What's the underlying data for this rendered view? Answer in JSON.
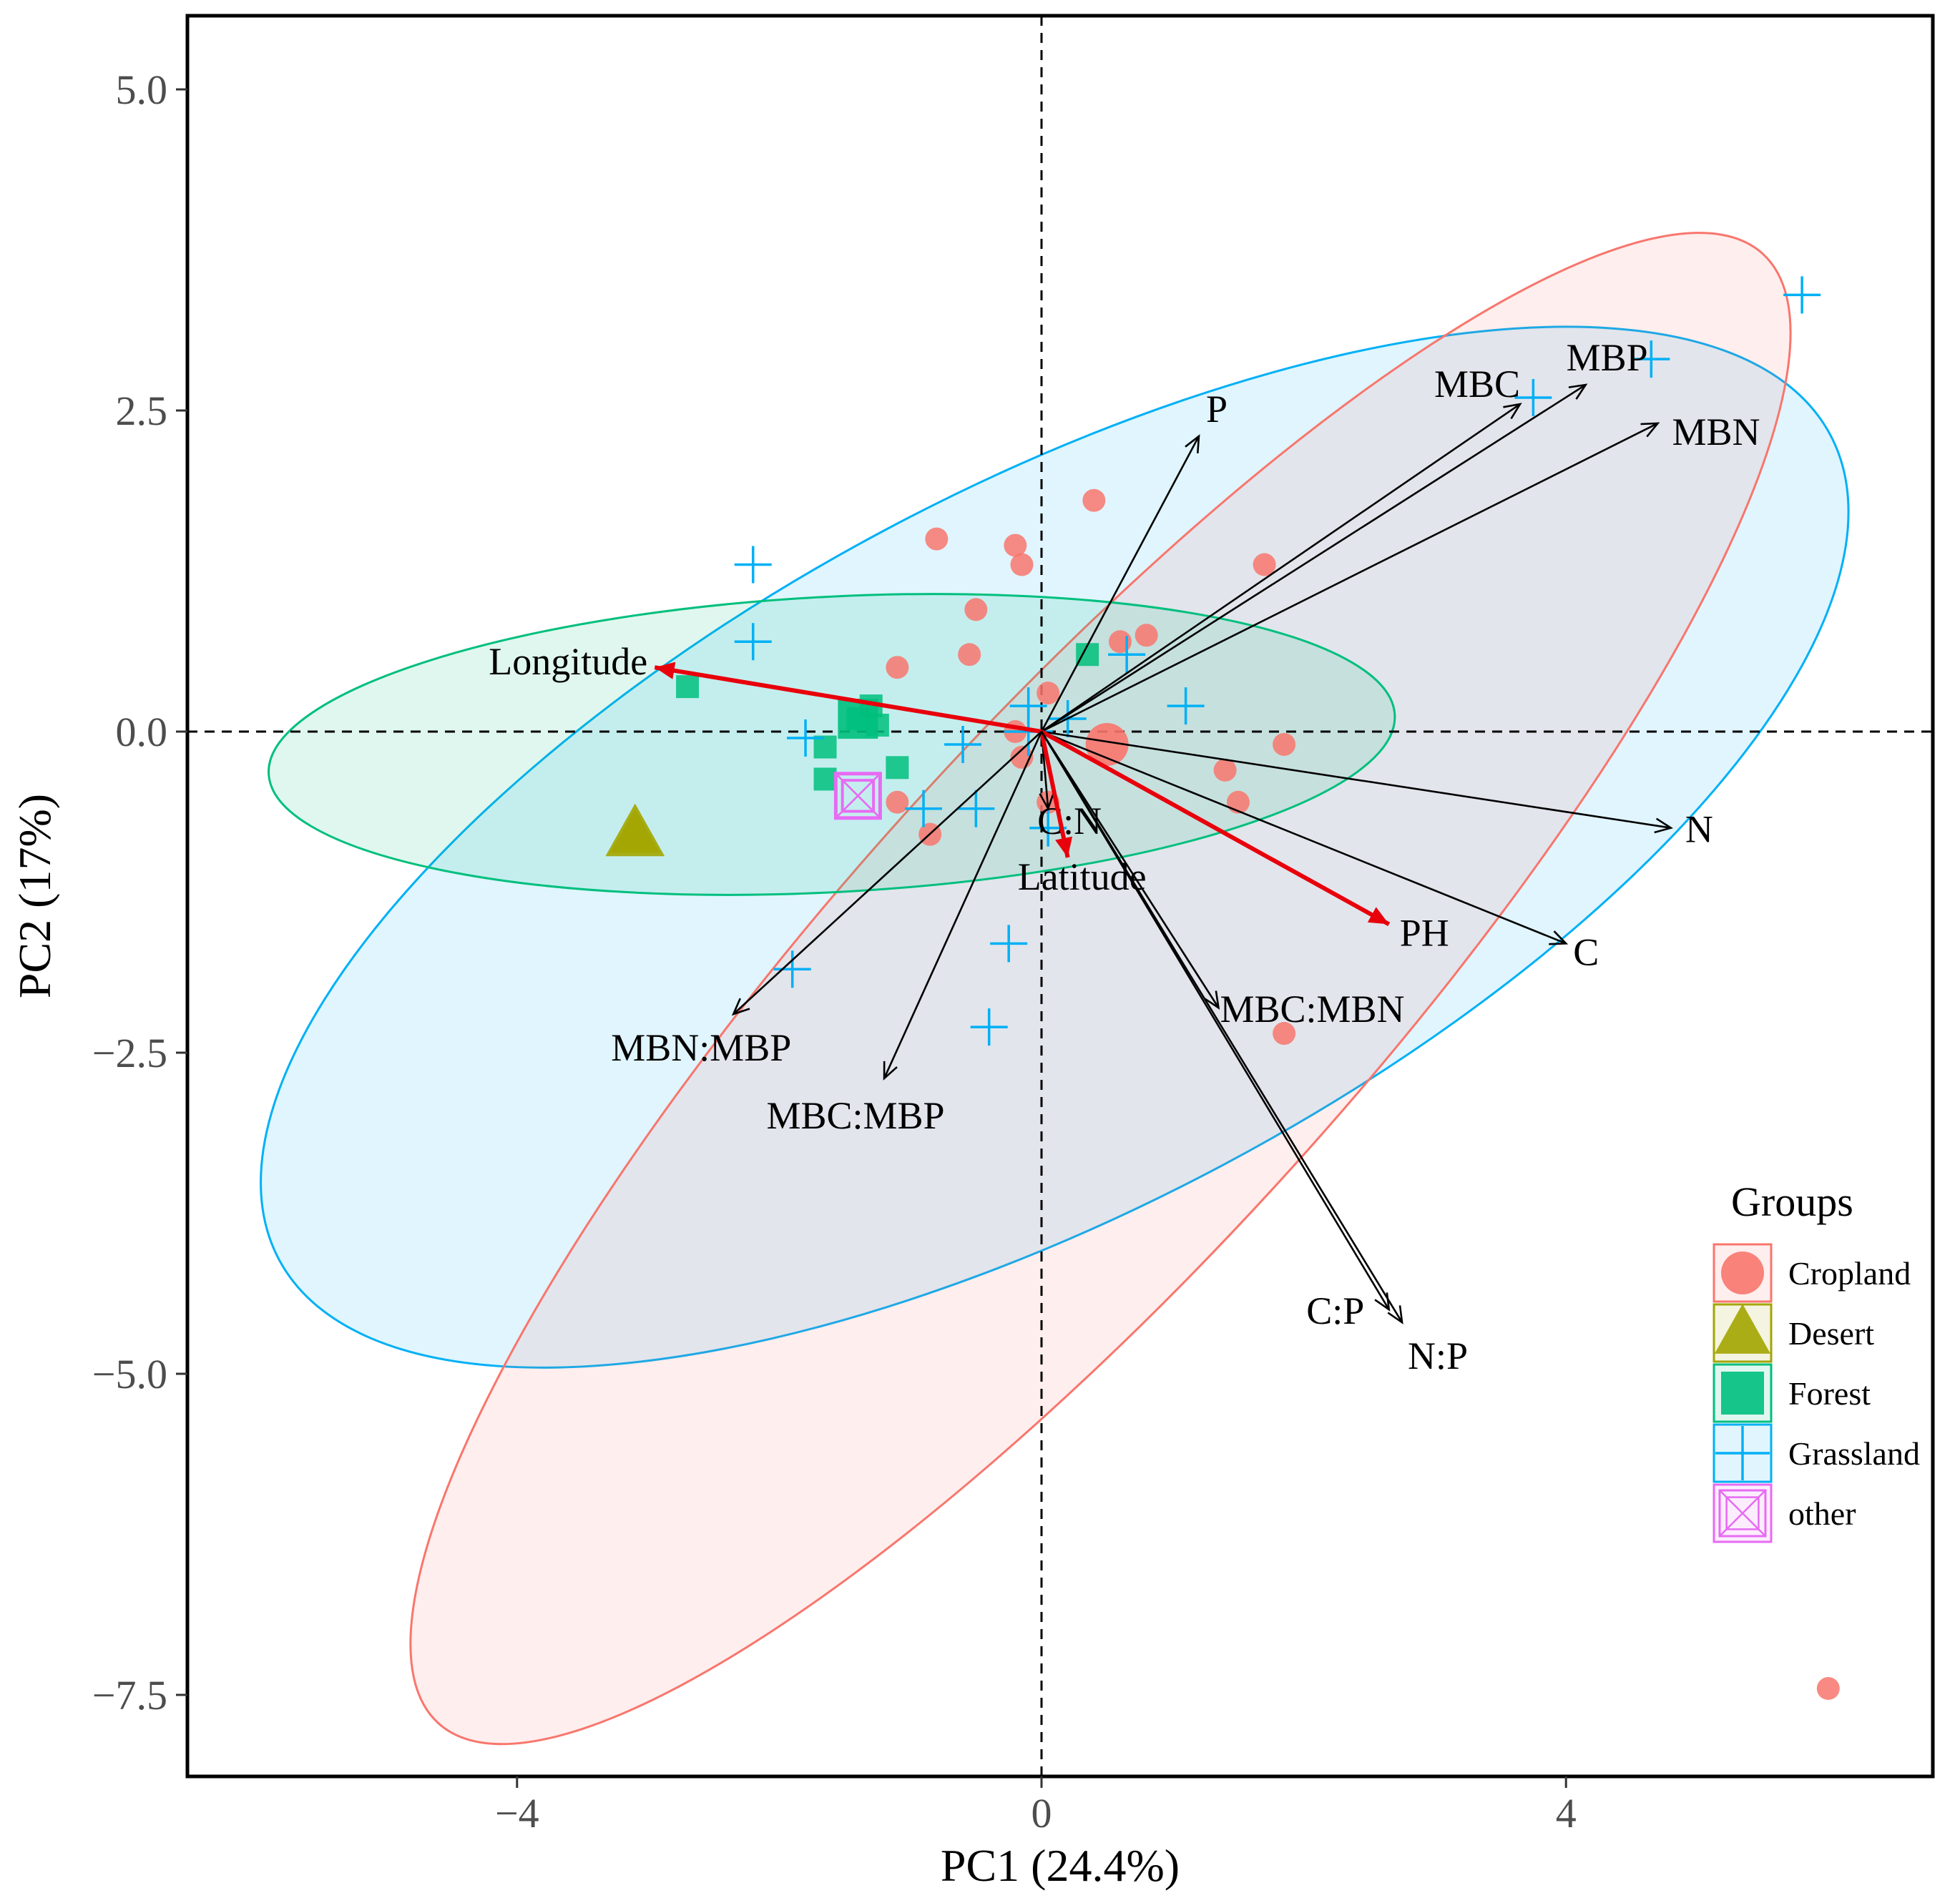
{
  "chart_data": {
    "type": "scatter",
    "subtype": "pca-biplot",
    "xlabel": "PC1 (24.4%)",
    "ylabel": "PC2 (17%)",
    "xlim": [
      -6.6,
      6.9
    ],
    "ylim": [
      -8.1,
      5.6
    ],
    "xticks": [
      {
        "value": -4,
        "label": "−4"
      },
      {
        "value": 0,
        "label": "0"
      },
      {
        "value": 4,
        "label": "4"
      }
    ],
    "yticks": [
      {
        "value": 5.0,
        "label": "5.0"
      },
      {
        "value": 2.5,
        "label": "2.5"
      },
      {
        "value": 0.0,
        "label": "0.0"
      },
      {
        "value": -2.5,
        "label": "−2.5"
      },
      {
        "value": -5.0,
        "label": "−5.0"
      },
      {
        "value": -7.5,
        "label": "−7.5"
      }
    ],
    "reference_lines": {
      "x": 0,
      "y": 0,
      "style": "dashed"
    },
    "legend": {
      "title": "Groups",
      "position": "right"
    },
    "groups": [
      {
        "name": "Cropland",
        "shape": "circle",
        "color": "#f8766d",
        "centroid": [
          0.5,
          -0.1
        ],
        "ellipse": {
          "center": [
            0.45,
            -2.0
          ],
          "semi_axes": [
            2.0,
            7.7
          ],
          "angle_deg": -42
        },
        "points": [
          [
            -0.8,
            1.5
          ],
          [
            -0.2,
            1.45
          ],
          [
            -0.15,
            1.3
          ],
          [
            0.4,
            1.8
          ],
          [
            1.7,
            1.3
          ],
          [
            -0.5,
            0.95
          ],
          [
            -1.1,
            0.5
          ],
          [
            -0.55,
            0.6
          ],
          [
            0.6,
            0.7
          ],
          [
            0.8,
            0.75
          ],
          [
            0.05,
            0.3
          ],
          [
            -0.2,
            0.0
          ],
          [
            -0.15,
            -0.2
          ],
          [
            1.4,
            -0.3
          ],
          [
            1.85,
            -0.1
          ],
          [
            1.5,
            -0.55
          ],
          [
            -1.1,
            -0.55
          ],
          [
            -0.85,
            -0.8
          ],
          [
            0.05,
            -0.55
          ],
          [
            1.85,
            -2.35
          ],
          [
            6.0,
            -7.45
          ]
        ]
      },
      {
        "name": "Desert",
        "shape": "triangle",
        "color": "#a3a500",
        "centroid": [
          -3.1,
          -0.8
        ],
        "points": [
          [
            -3.1,
            -0.8
          ]
        ]
      },
      {
        "name": "Forest",
        "shape": "square",
        "color": "#00bf7d",
        "centroid": [
          -1.4,
          0.1
        ],
        "ellipse": {
          "center": [
            -1.6,
            -0.1
          ],
          "semi_axes": [
            4.3,
            1.15
          ],
          "angle_deg": 3
        },
        "points": [
          [
            -2.7,
            0.35
          ],
          [
            -1.3,
            0.2
          ],
          [
            -1.4,
            0.1
          ],
          [
            -1.25,
            0.05
          ],
          [
            -1.65,
            -0.12
          ],
          [
            -1.1,
            -0.28
          ],
          [
            -1.65,
            -0.37
          ],
          [
            0.35,
            0.6
          ]
        ]
      },
      {
        "name": "Grassland",
        "shape": "plus",
        "color": "#00b0f6",
        "centroid": [
          -0.1,
          0.0
        ],
        "ellipse": {
          "center": [
            0.1,
            -0.9
          ],
          "semi_axes": [
            6.7,
            2.8
          ],
          "angle_deg": 28
        },
        "points": [
          [
            5.8,
            3.4
          ],
          [
            4.65,
            2.9
          ],
          [
            3.75,
            2.6
          ],
          [
            -2.2,
            1.3
          ],
          [
            -2.2,
            0.7
          ],
          [
            0.65,
            0.6
          ],
          [
            -0.1,
            0.2
          ],
          [
            1.1,
            0.2
          ],
          [
            0.2,
            0.1
          ],
          [
            -1.8,
            -0.05
          ],
          [
            -0.6,
            -0.1
          ],
          [
            -0.9,
            -0.6
          ],
          [
            -0.5,
            -0.6
          ],
          [
            0.05,
            -0.75
          ],
          [
            -0.25,
            -1.65
          ],
          [
            -0.4,
            -2.3
          ],
          [
            -1.9,
            -1.85
          ]
        ]
      },
      {
        "name": "other",
        "shape": "square-cross",
        "color": "#e76bf3",
        "centroid": [
          -1.4,
          -0.5
        ],
        "points": [
          [
            -1.4,
            -0.5
          ]
        ]
      }
    ],
    "loadings": [
      {
        "name": "P",
        "x": 1.2,
        "y": 2.3,
        "color": "#000000"
      },
      {
        "name": "MBC",
        "x": 3.65,
        "y": 2.55,
        "color": "#000000"
      },
      {
        "name": "MBP",
        "x": 4.15,
        "y": 2.7,
        "color": "#000000"
      },
      {
        "name": "MBN",
        "x": 4.7,
        "y": 2.4,
        "color": "#000000"
      },
      {
        "name": "Longitude",
        "x": -2.95,
        "y": 0.5,
        "color": "#e8000b"
      },
      {
        "name": "N",
        "x": 4.8,
        "y": -0.75,
        "color": "#000000"
      },
      {
        "name": "C",
        "x": 4.0,
        "y": -1.65,
        "color": "#000000"
      },
      {
        "name": "PH",
        "x": 2.65,
        "y": -1.5,
        "color": "#e8000b"
      },
      {
        "name": "C:N",
        "x": 0.05,
        "y": -0.6,
        "color": "#000000"
      },
      {
        "name": "Latitude",
        "x": 0.2,
        "y": -0.98,
        "color": "#e8000b"
      },
      {
        "name": "MBC:MBN",
        "x": 1.35,
        "y": -2.15,
        "color": "#000000"
      },
      {
        "name": "MBN:MBP",
        "x": -2.35,
        "y": -2.2,
        "color": "#000000"
      },
      {
        "name": "MBC:MBP",
        "x": -1.2,
        "y": -2.7,
        "color": "#000000"
      },
      {
        "name": "C:P",
        "x": 2.65,
        "y": -4.5,
        "color": "#000000"
      },
      {
        "name": "N:P",
        "x": 2.75,
        "y": -4.6,
        "color": "#000000"
      }
    ]
  }
}
